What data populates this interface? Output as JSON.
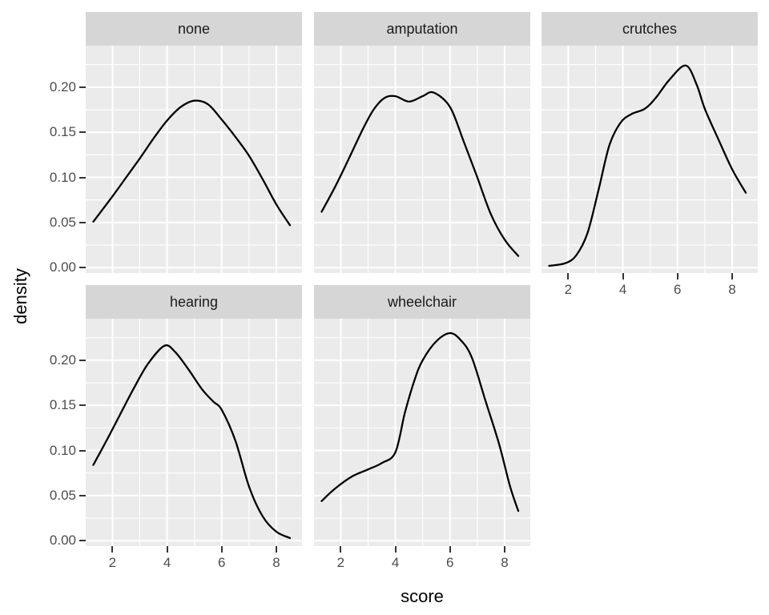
{
  "chart_data": {
    "type": "line",
    "subtype": "faceted-kernel-density",
    "title": "",
    "xlabel": "score",
    "ylabel": "density",
    "legend_position": "none",
    "xlim": [
      1.02,
      8.94
    ],
    "ylim": [
      -0.006,
      0.246
    ],
    "x_major_ticks": [
      2,
      4,
      6,
      8
    ],
    "x_tick_labels": [
      "2",
      "4",
      "6",
      "8"
    ],
    "x_minor_gridlines": [
      3,
      5,
      7
    ],
    "y_major_ticks": [
      0.0,
      0.05,
      0.1,
      0.15,
      0.2
    ],
    "y_tick_labels": [
      "0.00",
      "0.05",
      "0.10",
      "0.15",
      "0.20"
    ],
    "y_minor_gridlines": [
      0.025,
      0.075,
      0.125,
      0.175,
      0.225
    ],
    "grid": "major and minor white gridlines on grey panel",
    "colors": {
      "panel_background": "#EBEBEB",
      "strip_background": "#D6D6D6",
      "strip_text": "#1A1A1A",
      "gridline": "#FFFFFF",
      "curve": "#000000",
      "tick_mark": "#333333",
      "tick_label": "#4D4D4D",
      "axis_title": "#000000",
      "figure_background": "#FFFFFF"
    },
    "facet_variable_levels": [
      "none",
      "amputation",
      "crutches",
      "hearing",
      "wheelchair"
    ],
    "facets": [
      {
        "label": "none",
        "row": 0,
        "col": 0,
        "show_x_axis": false,
        "show_y_axis": true,
        "points": [
          [
            1.3,
            0.051
          ],
          [
            2.0,
            0.079
          ],
          [
            2.5,
            0.1
          ],
          [
            3.0,
            0.121
          ],
          [
            3.5,
            0.143
          ],
          [
            4.0,
            0.163
          ],
          [
            4.5,
            0.178
          ],
          [
            5.0,
            0.185
          ],
          [
            5.5,
            0.181
          ],
          [
            6.0,
            0.164
          ],
          [
            6.5,
            0.145
          ],
          [
            7.0,
            0.124
          ],
          [
            7.5,
            0.098
          ],
          [
            8.0,
            0.07
          ],
          [
            8.5,
            0.047
          ]
        ]
      },
      {
        "label": "amputation",
        "row": 0,
        "col": 1,
        "show_x_axis": false,
        "show_y_axis": false,
        "points": [
          [
            1.3,
            0.062
          ],
          [
            1.8,
            0.09
          ],
          [
            2.3,
            0.121
          ],
          [
            2.8,
            0.153
          ],
          [
            3.2,
            0.175
          ],
          [
            3.6,
            0.188
          ],
          [
            4.0,
            0.19
          ],
          [
            4.5,
            0.184
          ],
          [
            5.0,
            0.19
          ],
          [
            5.4,
            0.194
          ],
          [
            6.0,
            0.178
          ],
          [
            6.5,
            0.14
          ],
          [
            7.0,
            0.1
          ],
          [
            7.5,
            0.059
          ],
          [
            8.0,
            0.031
          ],
          [
            8.5,
            0.013
          ]
        ]
      },
      {
        "label": "crutches",
        "row": 0,
        "col": 2,
        "show_x_axis": true,
        "show_y_axis": false,
        "points": [
          [
            1.3,
            0.002
          ],
          [
            1.9,
            0.005
          ],
          [
            2.3,
            0.014
          ],
          [
            2.7,
            0.038
          ],
          [
            3.1,
            0.085
          ],
          [
            3.5,
            0.135
          ],
          [
            3.9,
            0.16
          ],
          [
            4.3,
            0.17
          ],
          [
            4.8,
            0.176
          ],
          [
            5.2,
            0.188
          ],
          [
            5.7,
            0.208
          ],
          [
            6.3,
            0.224
          ],
          [
            6.7,
            0.203
          ],
          [
            7.0,
            0.176
          ],
          [
            7.5,
            0.142
          ],
          [
            8.0,
            0.109
          ],
          [
            8.5,
            0.083
          ]
        ]
      },
      {
        "label": "hearing",
        "row": 1,
        "col": 0,
        "show_x_axis": true,
        "show_y_axis": true,
        "points": [
          [
            1.3,
            0.084
          ],
          [
            1.8,
            0.112
          ],
          [
            2.3,
            0.141
          ],
          [
            2.8,
            0.17
          ],
          [
            3.3,
            0.196
          ],
          [
            3.9,
            0.216
          ],
          [
            4.3,
            0.209
          ],
          [
            4.8,
            0.189
          ],
          [
            5.3,
            0.167
          ],
          [
            5.7,
            0.154
          ],
          [
            6.0,
            0.145
          ],
          [
            6.5,
            0.111
          ],
          [
            7.0,
            0.06
          ],
          [
            7.5,
            0.027
          ],
          [
            8.0,
            0.01
          ],
          [
            8.5,
            0.003
          ]
        ]
      },
      {
        "label": "wheelchair",
        "row": 1,
        "col": 1,
        "show_x_axis": true,
        "show_y_axis": false,
        "points": [
          [
            1.3,
            0.044
          ],
          [
            1.8,
            0.058
          ],
          [
            2.4,
            0.071
          ],
          [
            3.0,
            0.079
          ],
          [
            3.5,
            0.086
          ],
          [
            4.0,
            0.098
          ],
          [
            4.35,
            0.142
          ],
          [
            4.7,
            0.178
          ],
          [
            5.0,
            0.2
          ],
          [
            5.5,
            0.221
          ],
          [
            6.0,
            0.23
          ],
          [
            6.4,
            0.222
          ],
          [
            6.8,
            0.203
          ],
          [
            7.3,
            0.155
          ],
          [
            7.8,
            0.107
          ],
          [
            8.2,
            0.06
          ],
          [
            8.5,
            0.033
          ]
        ]
      }
    ]
  }
}
